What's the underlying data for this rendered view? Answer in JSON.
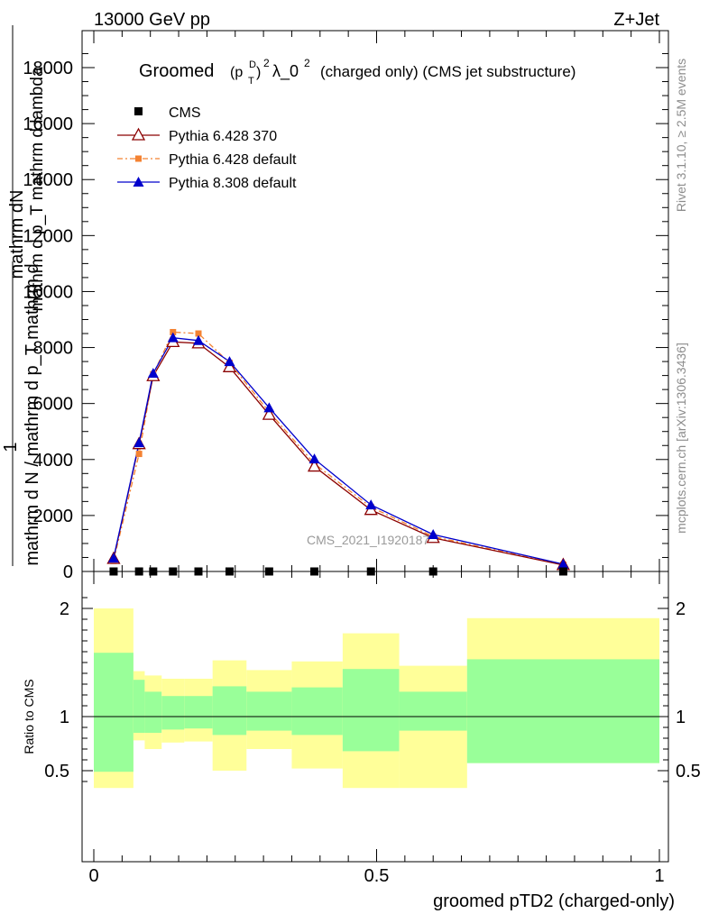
{
  "header": {
    "left": "13000 GeV pp",
    "right": "Z+Jet"
  },
  "side_labels": {
    "rivet": "Rivet 3.1.10, ≥ 2.5M events",
    "mcplots": "mcplots.cern.ch [arXiv:1306.3436]"
  },
  "watermark": "CMS_2021_I1920187",
  "colors": {
    "cms": "#000000",
    "py6_370": "#8b0000",
    "py6_default": "#f48232",
    "py8": "#0000cc",
    "band_outer": "#ffff99",
    "band_inner": "#99ff99"
  },
  "chart_data": [
    {
      "type": "line",
      "title": "Groomed (p_T^D)^2 λ_0^2 (charged only) (CMS jet substructure)",
      "title_parts": {
        "prefix": "Groomed",
        "p": "(p",
        "sup_d": "D",
        "sub_t": "T",
        "close": ")",
        "sup_2": "2",
        "lambda": "λ_0",
        "sup_2b": "2",
        "suffix": "(charged only) (CMS jet substructure)"
      },
      "ylabel_top": "mathrm d^2N",
      "ylabel_top_lines": [
        "mathrm dN",
        "mathrm d p_T mathrm d lambda"
      ],
      "ylabel_one": "1",
      "ylabel_bottom": "mathrm d N / mathrm d p_T mathrm d",
      "xlim": [
        0,
        1
      ],
      "ylim": [
        0,
        18800
      ],
      "yticks": [
        0,
        2000,
        4000,
        6000,
        8000,
        10000,
        12000,
        14000,
        16000,
        18000
      ],
      "yticklabels": [
        "0",
        "2000",
        "4000",
        "6000",
        "8000",
        "10000",
        "12000",
        "14000",
        "16000",
        "18000"
      ],
      "legend_position": "top-left",
      "x": [
        0.035,
        0.08,
        0.105,
        0.14,
        0.185,
        0.24,
        0.31,
        0.39,
        0.49,
        0.6,
        0.83
      ],
      "series": [
        {
          "name": "CMS",
          "marker": "square",
          "values": [
            0,
            0,
            0,
            0,
            0,
            0,
            0,
            0,
            0,
            0,
            0
          ]
        },
        {
          "name": "Pythia 6.428 370",
          "marker": "open-triangle",
          "values": [
            450,
            4550,
            6980,
            8200,
            8150,
            7300,
            5600,
            3750,
            2200,
            1200,
            230
          ]
        },
        {
          "name": "Pythia 6.428 default",
          "marker": "filled-square",
          "values": [
            380,
            4200,
            7050,
            8550,
            8500,
            7450,
            5700,
            3850,
            2300,
            1250,
            240
          ]
        },
        {
          "name": "Pythia 8.308 default",
          "marker": "filled-triangle",
          "values": [
            480,
            4600,
            7080,
            8350,
            8250,
            7500,
            5850,
            4020,
            2380,
            1320,
            260
          ]
        }
      ]
    },
    {
      "type": "area",
      "ylabel": "Ratio to CMS",
      "xlabel": "groomed pTD2 (charged-only)",
      "xlim": [
        0,
        1
      ],
      "ylim": [
        0.34,
        2.2
      ],
      "xticks": [
        0,
        0.5,
        1
      ],
      "xticklabels": [
        "0",
        "0.5",
        "1"
      ],
      "yticks": [
        0.5,
        1,
        2
      ],
      "yticklabels": [
        "0.5",
        "1",
        "2"
      ],
      "bin_edges": [
        0,
        0.07,
        0.09,
        0.12,
        0.16,
        0.21,
        0.27,
        0.35,
        0.44,
        0.54,
        0.66,
        1.0
      ],
      "outer_band": {
        "upper": [
          2.0,
          1.42,
          1.38,
          1.35,
          1.35,
          1.52,
          1.43,
          1.51,
          1.77,
          1.47,
          1.91
        ],
        "lower": [
          0.34,
          0.78,
          0.7,
          0.76,
          0.77,
          0.5,
          0.7,
          0.52,
          0.34,
          0.34,
          0.57
        ]
      },
      "inner_band": {
        "upper": [
          1.59,
          1.34,
          1.23,
          1.19,
          1.19,
          1.28,
          1.23,
          1.27,
          1.44,
          1.23,
          1.53
        ],
        "lower": [
          0.49,
          0.85,
          0.85,
          0.88,
          0.89,
          0.83,
          0.87,
          0.83,
          0.68,
          0.87,
          0.57
        ]
      },
      "reference_line": 1
    }
  ]
}
